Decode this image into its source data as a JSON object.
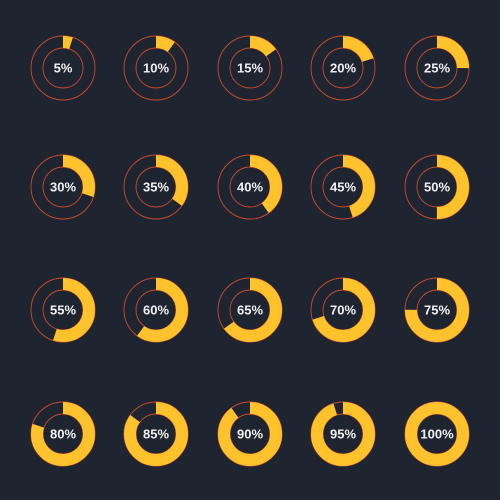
{
  "colors": {
    "background": "#1f2530",
    "fill": "#fec22d",
    "track_outline": "#c94a2c",
    "label": "#f1f1f3"
  },
  "gauges": [
    {
      "label": "5%",
      "value": 0.05
    },
    {
      "label": "10%",
      "value": 0.1
    },
    {
      "label": "15%",
      "value": 0.15
    },
    {
      "label": "20%",
      "value": 0.2
    },
    {
      "label": "25%",
      "value": 0.25
    },
    {
      "label": "30%",
      "value": 0.3
    },
    {
      "label": "35%",
      "value": 0.35
    },
    {
      "label": "40%",
      "value": 0.4
    },
    {
      "label": "45%",
      "value": 0.45
    },
    {
      "label": "50%",
      "value": 0.5
    },
    {
      "label": "55%",
      "value": 0.55
    },
    {
      "label": "60%",
      "value": 0.6
    },
    {
      "label": "65%",
      "value": 0.65
    },
    {
      "label": "70%",
      "value": 0.7
    },
    {
      "label": "75%",
      "value": 0.75
    },
    {
      "label": "80%",
      "value": 0.8
    },
    {
      "label": "85%",
      "value": 0.85
    },
    {
      "label": "90%",
      "value": 0.9
    },
    {
      "label": "95%",
      "value": 0.95
    },
    {
      "label": "100%",
      "value": 1.0
    }
  ]
}
